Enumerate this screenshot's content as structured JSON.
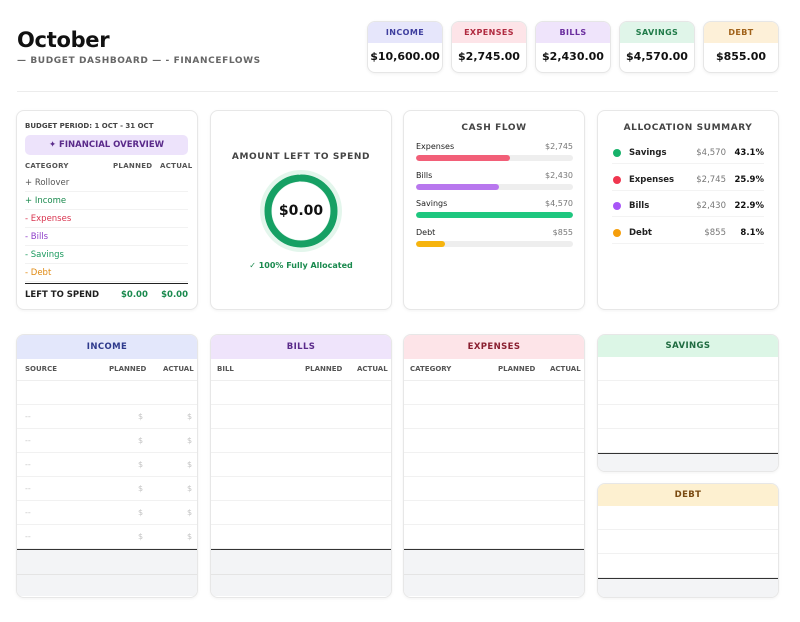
{
  "header": {
    "title": "October",
    "subtitle": "— BUDGET DASHBOARD — - FINANCEFLOWS"
  },
  "stats": [
    {
      "label": "INCOME",
      "value": "$10,600.00",
      "bg": "#e6e6fb",
      "color": "#3e3e9e"
    },
    {
      "label": "EXPENSES",
      "value": "$2,745.00",
      "bg": "#fde4e8",
      "color": "#b02a3f"
    },
    {
      "label": "BILLS",
      "value": "$2,430.00",
      "bg": "#efe4fb",
      "color": "#6a2d9e"
    },
    {
      "label": "SAVINGS",
      "value": "$4,570.00",
      "bg": "#e0f5e9",
      "color": "#1f7a48"
    },
    {
      "label": "DEBT",
      "value": "$855.00",
      "bg": "#fdf0d8",
      "color": "#a0621a"
    }
  ],
  "overview": {
    "period": "BUDGET PERIOD: 1 OCT - 31 OCT",
    "button": "✦ FINANCIAL OVERVIEW",
    "col_category": "CATEGORY",
    "col_planned": "PLANNED",
    "col_actual": "ACTUAL",
    "rows": [
      {
        "label": "+ Rollover",
        "color": "#555555"
      },
      {
        "label": "+ Income",
        "color": "#1a8a4e"
      },
      {
        "label": "- Expenses",
        "color": "#d9344f"
      },
      {
        "label": "- Bills",
        "color": "#8e3ec9"
      },
      {
        "label": "- Savings",
        "color": "#1a9a5e"
      },
      {
        "label": "- Debt",
        "color": "#e08a12"
      }
    ],
    "total_label": "LEFT TO SPEND",
    "total_planned": "$0.00",
    "total_actual": "$0.00"
  },
  "left_to_spend": {
    "title": "AMOUNT LEFT TO SPEND",
    "value": "$0.00",
    "caption": "✓ 100% Fully Allocated",
    "allocated_fraction": 1.0
  },
  "cash_flow": {
    "title": "CASH FLOW",
    "max": 4570,
    "items": [
      {
        "label": "Expenses",
        "amount": "$2,745",
        "value": 2745,
        "color": "#f25f78"
      },
      {
        "label": "Bills",
        "amount": "$2,430",
        "value": 2430,
        "color": "#b877ee"
      },
      {
        "label": "Savings",
        "amount": "$4,570",
        "value": 4570,
        "color": "#1ec77f"
      },
      {
        "label": "Debt",
        "amount": "$855",
        "value": 855,
        "color": "#f6b40e"
      }
    ]
  },
  "allocation": {
    "title": "ALLOCATION SUMMARY",
    "rows": [
      {
        "name": "Savings",
        "amount": "$4,570",
        "pct": "43.1%",
        "color": "#17b26a"
      },
      {
        "name": "Expenses",
        "amount": "$2,745",
        "pct": "25.9%",
        "color": "#f0364f"
      },
      {
        "name": "Bills",
        "amount": "$2,430",
        "pct": "22.9%",
        "color": "#a855f7"
      },
      {
        "name": "Debt",
        "amount": "$855",
        "pct": "8.1%",
        "color": "#f59e0b"
      }
    ]
  },
  "tables": {
    "income": {
      "title": "INCOME",
      "c1": "SOURCE",
      "c2": "PLANNED",
      "c3": "ACTUAL",
      "bg": "#e3e7fb",
      "color": "#2e3a8c",
      "placeholder_dash": "--",
      "placeholder_currency": "$"
    },
    "bills": {
      "title": "BILLS",
      "c1": "BILL",
      "c2": "PLANNED",
      "c3": "ACTUAL",
      "bg": "#efe4fb",
      "color": "#5a2a8a"
    },
    "expenses": {
      "title": "EXPENSES",
      "c1": "CATEGORY",
      "c2": "PLANNED",
      "c3": "ACTUAL",
      "bg": "#fde4e8",
      "color": "#8a1f30"
    },
    "savings": {
      "title": "SAVINGS",
      "bg": "#dcf6e6",
      "color": "#1f6b40"
    },
    "debt": {
      "title": "DEBT",
      "bg": "#fdf0d0",
      "color": "#7a4a10"
    }
  }
}
